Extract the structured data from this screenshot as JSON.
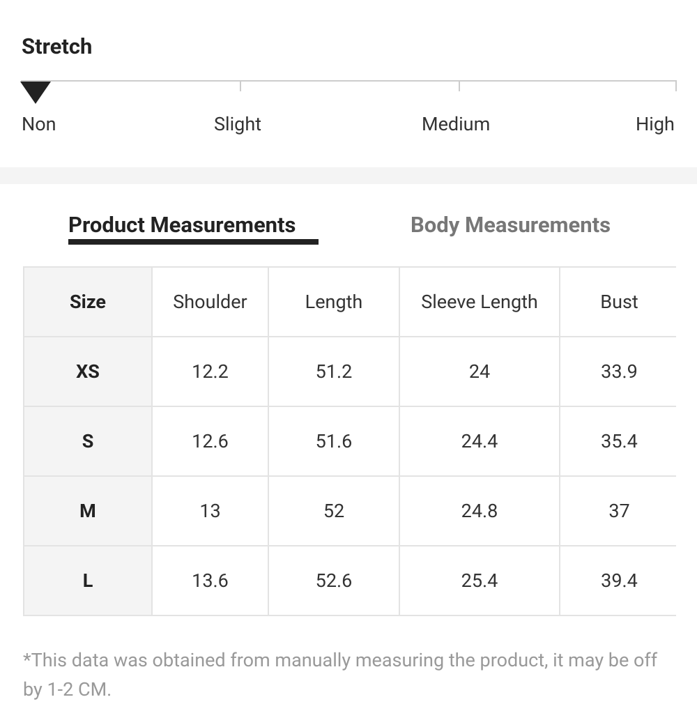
{
  "stretch": {
    "title": "Stretch",
    "levels": [
      "Non",
      "Slight",
      "Medium",
      "High"
    ]
  },
  "tabs": [
    "Product Measurements",
    "Body Measurements"
  ],
  "table": {
    "header": [
      "Size",
      "Shoulder",
      "Length",
      "Sleeve Length",
      "Bust"
    ],
    "rows": [
      [
        "XS",
        12.2,
        51.2,
        24,
        33.9
      ],
      [
        "S",
        12.6,
        51.6,
        24.4,
        35.4
      ],
      [
        "M",
        13,
        52,
        24.8,
        37
      ],
      [
        "L",
        13.6,
        52.6,
        25.4,
        39.4
      ]
    ]
  },
  "note": "*This data was obtained from manually measuring the product, it may be off by 1-2 CM."
}
